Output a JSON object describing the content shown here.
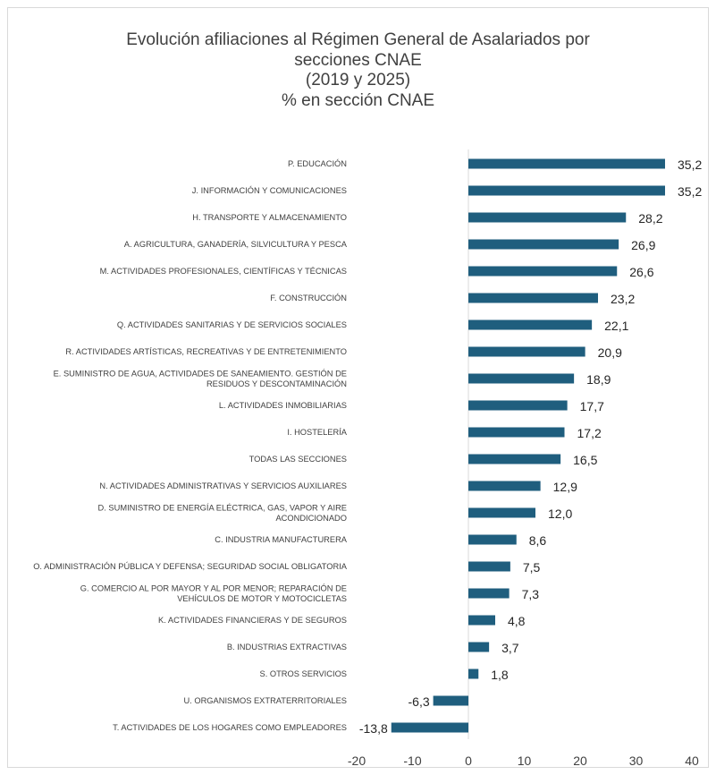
{
  "chart_data": {
    "type": "bar",
    "orientation": "horizontal",
    "title": [
      "Evolución afiliaciones al Régimen General de Asalariados por",
      "secciones CNAE",
      "(2019 y 2025)",
      "% en sección CNAE"
    ],
    "categories": [
      [
        "P. EDUCACIÓN"
      ],
      [
        "J. INFORMACIÓN Y COMUNICACIONES"
      ],
      [
        "H. TRANSPORTE Y ALMACENAMIENTO"
      ],
      [
        "A. AGRICULTURA, GANADERÍA, SILVICULTURA Y PESCA"
      ],
      [
        "M. ACTIVIDADES PROFESIONALES, CIENTÍFICAS Y TÉCNICAS"
      ],
      [
        "F. CONSTRUCCIÓN"
      ],
      [
        "Q. ACTIVIDADES SANITARIAS Y DE SERVICIOS SOCIALES"
      ],
      [
        "R. ACTIVIDADES ARTÍSTICAS, RECREATIVAS Y DE ENTRETENIMIENTO"
      ],
      [
        "E. SUMINISTRO DE AGUA, ACTIVIDADES DE SANEAMIENTO. GESTIÓN DE",
        "RESIDUOS Y DESCONTAMINACIÓN"
      ],
      [
        "L. ACTIVIDADES INMOBILIARIAS"
      ],
      [
        "I. HOSTELERÍA"
      ],
      [
        "TODAS LAS SECCIONES"
      ],
      [
        "N. ACTIVIDADES ADMINISTRATIVAS Y SERVICIOS AUXILIARES"
      ],
      [
        "D. SUMINISTRO DE ENERGÍA ELÉCTRICA, GAS, VAPOR Y AIRE",
        "ACONDICIONADO"
      ],
      [
        "C. INDUSTRIA MANUFACTURERA"
      ],
      [
        "O. ADMINISTRACIÓN PÚBLICA Y DEFENSA; SEGURIDAD SOCIAL OBLIGATORIA"
      ],
      [
        "G. COMERCIO AL POR MAYOR Y AL POR MENOR; REPARACIÓN DE",
        "VEHÍCULOS DE MOTOR Y MOTOCICLETAS"
      ],
      [
        "K. ACTIVIDADES FINANCIERAS Y DE SEGUROS"
      ],
      [
        "B. INDUSTRIAS EXTRACTIVAS"
      ],
      [
        "S. OTROS SERVICIOS"
      ],
      [
        "U. ORGANISMOS EXTRATERRITORIALES"
      ],
      [
        "T. ACTIVIDADES DE LOS HOGARES COMO EMPLEADORES"
      ]
    ],
    "values": [
      35.2,
      35.2,
      28.2,
      26.9,
      26.6,
      23.2,
      22.1,
      20.9,
      18.9,
      17.7,
      17.2,
      16.5,
      12.9,
      12.0,
      8.6,
      7.5,
      7.3,
      4.8,
      3.7,
      1.8,
      -6.3,
      -13.8
    ],
    "value_labels": [
      "35,2",
      "35,2",
      "28,2",
      "26,9",
      "26,6",
      "23,2",
      "22,1",
      "20,9",
      "18,9",
      "17,7",
      "17,2",
      "16,5",
      "12,9",
      "12,0",
      "8,6",
      "7,5",
      "7,3",
      "4,8",
      "3,7",
      "1,8",
      "-6,3",
      "-13,8"
    ],
    "xlim": [
      -20,
      40
    ],
    "xticks": [
      "-20",
      "-10",
      "0",
      "10",
      "20",
      "30",
      "40"
    ],
    "xtick_values": [
      -20,
      -10,
      0,
      10,
      20,
      30,
      40
    ],
    "xlabel": "",
    "ylabel": "",
    "grid": false,
    "bar_color": "#1f5e7e"
  }
}
